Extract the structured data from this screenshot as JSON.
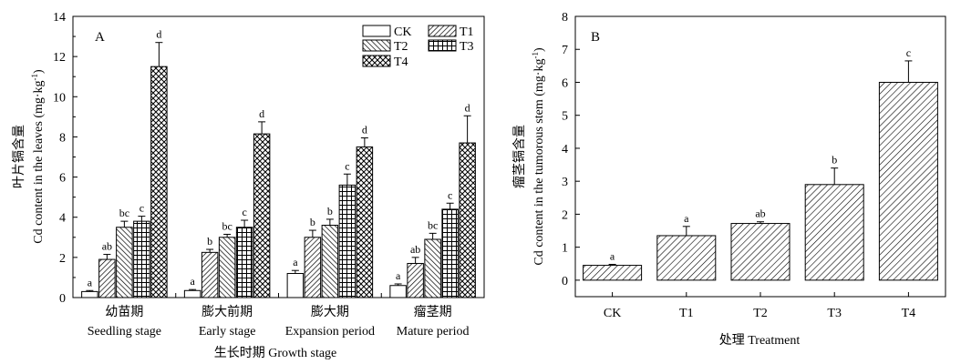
{
  "chart_data": [
    {
      "type": "bar",
      "panel_label": "A",
      "ylabel_cn": "叶片镉含量",
      "ylabel_en": "Cd content in the leaves (mg·kg-1)",
      "ylabel_en_main": "Cd content in the leaves (mg·kg",
      "ylabel_en_sup": "-1",
      "ylabel_en_close": ")",
      "xlabel": "生长时期 Growth stage",
      "ylim": [
        0,
        14
      ],
      "yticks": [
        0,
        2,
        4,
        6,
        8,
        10,
        12,
        14
      ],
      "groups": [
        {
          "cn": "幼苗期",
          "en": "Seedling stage"
        },
        {
          "cn": "膨大前期",
          "en": "Early stage"
        },
        {
          "cn": "膨大期",
          "en": "Expansion period"
        },
        {
          "cn": "瘤茎期",
          "en": "Mature period"
        }
      ],
      "legend": [
        "CK",
        "T1",
        "T2",
        "T3",
        "T4"
      ],
      "series": [
        {
          "name": "CK",
          "values": [
            0.3,
            0.35,
            1.2,
            0.6
          ],
          "errors": [
            0.05,
            0.05,
            0.15,
            0.08
          ],
          "letters": [
            "a",
            "a",
            "a",
            "a"
          ]
        },
        {
          "name": "T1",
          "values": [
            1.9,
            2.25,
            3.0,
            1.7
          ],
          "errors": [
            0.25,
            0.15,
            0.35,
            0.3
          ],
          "letters": [
            "ab",
            "b",
            "b",
            "ab"
          ]
        },
        {
          "name": "T2",
          "values": [
            3.5,
            3.0,
            3.6,
            2.9
          ],
          "errors": [
            0.3,
            0.15,
            0.3,
            0.3
          ],
          "letters": [
            "bc",
            "bc",
            "b",
            "bc"
          ]
        },
        {
          "name": "T3",
          "values": [
            3.8,
            3.5,
            5.6,
            4.4
          ],
          "errors": [
            0.25,
            0.35,
            0.55,
            0.3
          ],
          "letters": [
            "c",
            "c",
            "c",
            "c"
          ]
        },
        {
          "name": "T4",
          "values": [
            11.5,
            8.15,
            7.5,
            7.7
          ],
          "errors": [
            1.2,
            0.6,
            0.45,
            1.35
          ],
          "letters": [
            "d",
            "d",
            "d",
            "d"
          ]
        }
      ]
    },
    {
      "type": "bar",
      "panel_label": "B",
      "ylabel_cn": "瘤茎镉含量",
      "ylabel_en": "Cd content in the tumorous stem (mg·kg-1)",
      "ylabel_en_main": "Cd content in the tumorous stem (mg·kg",
      "ylabel_en_sup": "-1",
      "ylabel_en_close": ")",
      "xlabel": "处理 Treatment",
      "ylim": [
        -0.5,
        8
      ],
      "yticks": [
        0,
        1,
        2,
        3,
        4,
        5,
        6,
        7,
        8
      ],
      "categories": [
        "CK",
        "T1",
        "T2",
        "T3",
        "T4"
      ],
      "values": [
        0.45,
        1.35,
        1.72,
        2.9,
        6.0
      ],
      "errors": [
        0.03,
        0.28,
        0.05,
        0.5,
        0.65
      ],
      "letters": [
        "a",
        "a",
        "ab",
        "b",
        "c"
      ]
    }
  ]
}
